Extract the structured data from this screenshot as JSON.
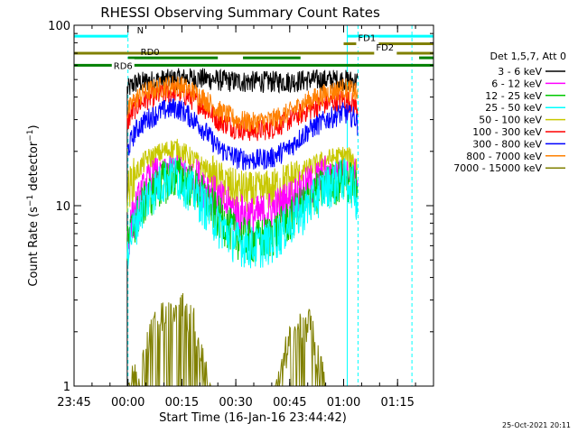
{
  "chart_data": {
    "type": "line",
    "title": "RHESSI Observing Summary Count Rates",
    "xlabel": "Start Time (16-Jan-16 23:44:42)",
    "ylabel": "Count Rate (s⁻¹ detector⁻¹)",
    "ylabel_main": "Count Rate (s",
    "ylabel_sup1": "−1",
    "ylabel_mid": " detector",
    "ylabel_sup2": "−1",
    "ylabel_end": ")",
    "y_scale": "log",
    "ylim": [
      1,
      100
    ],
    "y_ticks": [
      {
        "value": 1,
        "label": "1"
      },
      {
        "value": 10,
        "label": "10"
      },
      {
        "value": 100,
        "label": "100"
      }
    ],
    "xlim_minutes_from_2345": [
      0,
      100
    ],
    "x_ticks": [
      {
        "label": "23:45",
        "t": 0
      },
      {
        "label": "00:00",
        "t": 15
      },
      {
        "label": "00:15",
        "t": 30
      },
      {
        "label": "00:30",
        "t": 45
      },
      {
        "label": "00:45",
        "t": 60
      },
      {
        "label": "01:00",
        "t": 75
      },
      {
        "label": "01:15",
        "t": 90
      }
    ],
    "legend_title": "Det 1,5,7, Att 0",
    "legend_position": "right",
    "series": [
      {
        "name": "3 - 6 keV",
        "color": "#000000",
        "points": [
          [
            14.8,
            44
          ],
          [
            17,
            48
          ],
          [
            20,
            49
          ],
          [
            25,
            50
          ],
          [
            30,
            51
          ],
          [
            35,
            51
          ],
          [
            40,
            50
          ],
          [
            45,
            49
          ],
          [
            50,
            49
          ],
          [
            55,
            49
          ],
          [
            60,
            49
          ],
          [
            65,
            50
          ],
          [
            70,
            50
          ],
          [
            75,
            50
          ],
          [
            79,
            49
          ]
        ]
      },
      {
        "name": "6 - 12 keV",
        "color": "#ff00ff",
        "points": [
          [
            14.8,
            6.5
          ],
          [
            17,
            9.5
          ],
          [
            20,
            13
          ],
          [
            25,
            16
          ],
          [
            28,
            17
          ],
          [
            30,
            16.5
          ],
          [
            35,
            14
          ],
          [
            40,
            11
          ],
          [
            45,
            9.3
          ],
          [
            50,
            8.8
          ],
          [
            55,
            9.5
          ],
          [
            60,
            11
          ],
          [
            65,
            13
          ],
          [
            70,
            15
          ],
          [
            75,
            16
          ],
          [
            78,
            15
          ],
          [
            79,
            12
          ]
        ]
      },
      {
        "name": "12 - 25 keV",
        "color": "#00c800",
        "points": [
          [
            14.8,
            6
          ],
          [
            17,
            8.5
          ],
          [
            20,
            11
          ],
          [
            25,
            14
          ],
          [
            28,
            15
          ],
          [
            30,
            14.5
          ],
          [
            35,
            12
          ],
          [
            40,
            9
          ],
          [
            45,
            7
          ],
          [
            50,
            6.5
          ],
          [
            55,
            7
          ],
          [
            60,
            8.5
          ],
          [
            65,
            11
          ],
          [
            70,
            13
          ],
          [
            75,
            14.5
          ],
          [
            78,
            13.5
          ],
          [
            79,
            11
          ]
        ]
      },
      {
        "name": "25 - 50 keV",
        "color": "#00ffff",
        "points": [
          [
            14.8,
            6
          ],
          [
            17,
            8
          ],
          [
            20,
            11
          ],
          [
            25,
            14
          ],
          [
            28,
            15
          ],
          [
            30,
            14
          ],
          [
            35,
            11
          ],
          [
            40,
            8
          ],
          [
            45,
            6.5
          ],
          [
            50,
            6
          ],
          [
            55,
            6.5
          ],
          [
            60,
            8
          ],
          [
            65,
            10
          ],
          [
            70,
            13
          ],
          [
            75,
            14.5
          ],
          [
            78,
            13
          ],
          [
            79,
            10
          ]
        ]
      },
      {
        "name": "50 - 100 keV",
        "color": "#c8c800",
        "points": [
          [
            14.8,
            12
          ],
          [
            17,
            15
          ],
          [
            20,
            18
          ],
          [
            25,
            20
          ],
          [
            28,
            21
          ],
          [
            30,
            20
          ],
          [
            35,
            17
          ],
          [
            40,
            14
          ],
          [
            45,
            12.5
          ],
          [
            50,
            12
          ],
          [
            55,
            12.5
          ],
          [
            60,
            14
          ],
          [
            65,
            16
          ],
          [
            70,
            18
          ],
          [
            75,
            19
          ],
          [
            78,
            18
          ],
          [
            79,
            16
          ]
        ]
      },
      {
        "name": "100 - 300 keV",
        "color": "#ff0000",
        "points": [
          [
            14.8,
            29
          ],
          [
            17,
            35
          ],
          [
            20,
            39
          ],
          [
            25,
            42
          ],
          [
            28,
            43
          ],
          [
            30,
            42
          ],
          [
            35,
            37
          ],
          [
            40,
            30
          ],
          [
            45,
            27
          ],
          [
            50,
            26
          ],
          [
            55,
            27
          ],
          [
            60,
            30
          ],
          [
            65,
            34
          ],
          [
            70,
            37
          ],
          [
            75,
            39
          ],
          [
            78,
            37
          ],
          [
            79,
            34
          ]
        ]
      },
      {
        "name": "300 - 800 keV",
        "color": "#0000ff",
        "points": [
          [
            14.8,
            20
          ],
          [
            17,
            26
          ],
          [
            20,
            30
          ],
          [
            25,
            34
          ],
          [
            28,
            35
          ],
          [
            30,
            34
          ],
          [
            35,
            28
          ],
          [
            40,
            21
          ],
          [
            45,
            18.5
          ],
          [
            50,
            18
          ],
          [
            55,
            18.5
          ],
          [
            60,
            21
          ],
          [
            65,
            26
          ],
          [
            70,
            30
          ],
          [
            75,
            33
          ],
          [
            78,
            31
          ],
          [
            79,
            28
          ]
        ]
      },
      {
        "name": "800 - 7000 keV",
        "color": "#ff8000",
        "points": [
          [
            14.8,
            33
          ],
          [
            17,
            39
          ],
          [
            20,
            43
          ],
          [
            25,
            46
          ],
          [
            28,
            47
          ],
          [
            30,
            46
          ],
          [
            35,
            41
          ],
          [
            40,
            34
          ],
          [
            45,
            30
          ],
          [
            50,
            29
          ],
          [
            55,
            30
          ],
          [
            60,
            33
          ],
          [
            65,
            38
          ],
          [
            70,
            42
          ],
          [
            75,
            45
          ],
          [
            78,
            43
          ],
          [
            79,
            40
          ]
        ]
      },
      {
        "name": "7000 - 15000 keV",
        "color": "#808000",
        "points": [
          [
            14.8,
            1.0
          ],
          [
            19,
            1.3
          ],
          [
            21,
            2.0
          ],
          [
            24,
            2.6
          ],
          [
            27,
            2.8
          ],
          [
            29,
            3.0
          ],
          [
            31,
            2.7
          ],
          [
            34,
            2.2
          ],
          [
            36,
            1.4
          ],
          [
            38,
            1.0
          ],
          [
            56,
            1.0
          ],
          [
            58,
            1.4
          ],
          [
            61,
            2.0
          ],
          [
            64,
            2.4
          ],
          [
            66,
            2.2
          ],
          [
            68,
            1.4
          ],
          [
            70,
            1.0
          ]
        ]
      }
    ],
    "bars": [
      {
        "label": "N",
        "color": "#00ffff",
        "y": 87,
        "t0": 0,
        "t1": 15
      },
      {
        "label": "",
        "color": "#00ffff",
        "y": 87,
        "t0": 76,
        "t1": 100
      },
      {
        "label": "FD1",
        "color": "#808000",
        "y": 79,
        "t0": 75,
        "t1": 100
      },
      {
        "label": "FD2",
        "color": "#808000",
        "y": 70,
        "t0": 0,
        "t1": 100
      },
      {
        "label": "RD0",
        "color": "#008000",
        "y": 66,
        "t0": 15,
        "t1": 40
      },
      {
        "label": "",
        "color": "#008000",
        "y": 66,
        "t0": 47,
        "t1": 63
      },
      {
        "label": "",
        "color": "#008000",
        "y": 66,
        "t0": 96,
        "t1": 100
      },
      {
        "label": "RD6",
        "color": "#008000",
        "y": 60,
        "t0": 0,
        "t1": 100
      }
    ],
    "vlines": [
      {
        "t": 0,
        "color": "#00ffff",
        "style": "solid"
      },
      {
        "t": 15,
        "color": "#00ffff",
        "style": "dashed"
      },
      {
        "t": 79,
        "color": "#00ffff",
        "style": "dashed"
      },
      {
        "t": 76,
        "color": "#00ffff",
        "style": "solid"
      },
      {
        "t": 94,
        "color": "#00ffff",
        "style": "dashed"
      }
    ],
    "timestamp": "25-Oct-2021 20:11"
  }
}
